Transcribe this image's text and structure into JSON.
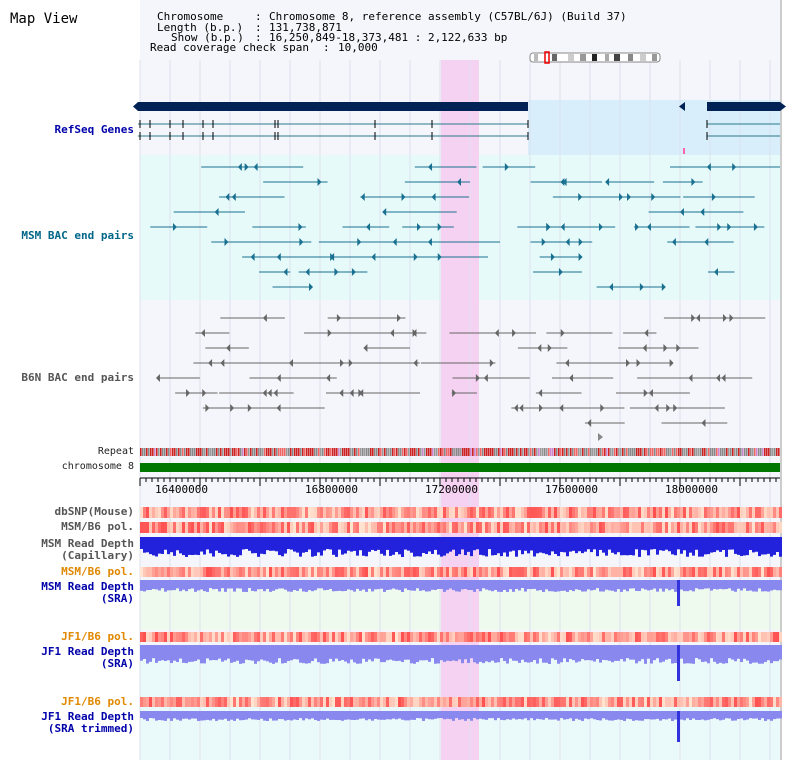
{
  "title": "Map View",
  "info": {
    "chromosome_label": "Chromosome",
    "chromosome_value": "Chromosome 8, reference assembly (C57BL/6J) (Build 37)",
    "length_label": "Length (b.p.)",
    "length_value": "131,738,871",
    "show_label": "Show (b.p.)",
    "show_value": "16,250,849-18,373,481 : 2,122,633 bp",
    "span_label": "Read coverage check span",
    "span_value": "10,000"
  },
  "tracks": {
    "refseq": "RefSeq Genes",
    "msm_bac": "MSM BAC end pairs",
    "b6n_bac": "B6N BAC end pairs",
    "repeat": "Repeat",
    "chromosome": "chromosome 8",
    "dbsnp": "dbSNP(Mouse)",
    "msm_pol": "MSM/B6 pol.",
    "msm_depth_cap_1": "MSM Read Depth",
    "msm_depth_cap_2": "(Capillary)",
    "msm_pol2": "MSM/B6 pol.",
    "msm_depth_sra_1": "MSM Read Depth",
    "msm_depth_sra_2": "(SRA)",
    "jf1_pol": "JF1/B6 pol.",
    "jf1_depth_sra_1": "JF1 Read Depth",
    "jf1_depth_sra_2": "(SRA)",
    "jf1_pol2": "JF1/B6 pol.",
    "jf1_depth_trim_1": "JF1 Read Depth",
    "jf1_depth_trim_2": "(SRA trimmed)"
  },
  "axis": {
    "ticks": [
      "16400000",
      "16800000",
      "17200000",
      "17600000",
      "18000000"
    ]
  },
  "colors": {
    "refseq_bar": "#002255",
    "refseq_line": "#2a7a8a",
    "msm_feature": "#1a7090",
    "b6n_feature": "#666666",
    "chromosome": "#007700",
    "highlight": "#f6d2f2",
    "depth_cap": "#2222dd",
    "depth_sra": "#8888ee"
  }
}
